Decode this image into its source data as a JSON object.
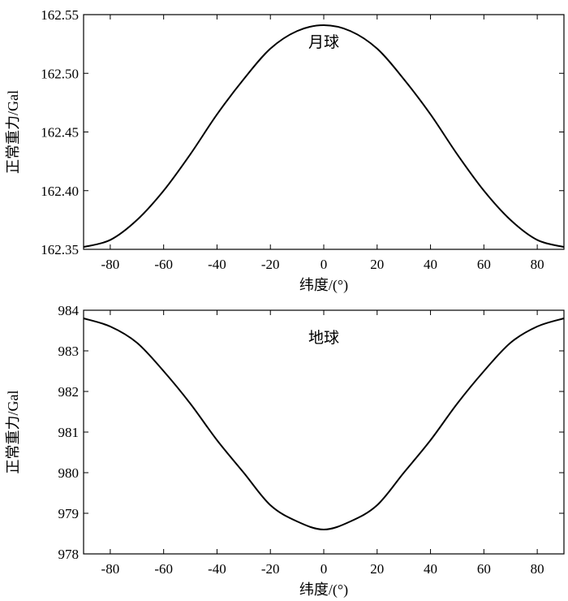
{
  "chart_data": [
    {
      "type": "line",
      "annotation": "月球",
      "xlabel": "纬度/(°)",
      "ylabel": "正常重力/Gal",
      "xlim": [
        -90,
        90
      ],
      "ylim": [
        162.35,
        162.55
      ],
      "xticks": [
        -80,
        -60,
        -40,
        -20,
        0,
        20,
        40,
        60,
        80
      ],
      "xtick_labels": [
        "-80",
        "-60",
        "-40",
        "-20",
        "0",
        "20",
        "40",
        "60",
        "80"
      ],
      "yticks": [
        162.35,
        162.4,
        162.45,
        162.5,
        162.55
      ],
      "ytick_labels": [
        "162.35",
        "162.40",
        "162.45",
        "162.50",
        "162.55"
      ],
      "grid": false,
      "series": [
        {
          "x": [
            -90,
            -80,
            -70,
            -60,
            -50,
            -40,
            -30,
            -20,
            -10,
            0,
            10,
            20,
            30,
            40,
            50,
            60,
            70,
            80,
            90
          ],
          "y": [
            162.352,
            162.358,
            162.375,
            162.4,
            162.431,
            162.465,
            162.495,
            162.521,
            162.536,
            162.541,
            162.536,
            162.521,
            162.495,
            162.465,
            162.431,
            162.4,
            162.375,
            162.358,
            162.352
          ]
        }
      ]
    },
    {
      "type": "line",
      "annotation": "地球",
      "xlabel": "纬度/(°)",
      "ylabel": "正常重力/Gal",
      "xlim": [
        -90,
        90
      ],
      "ylim": [
        978,
        984
      ],
      "xticks": [
        -80,
        -60,
        -40,
        -20,
        0,
        20,
        40,
        60,
        80
      ],
      "xtick_labels": [
        "-80",
        "-60",
        "-40",
        "-20",
        "0",
        "20",
        "40",
        "60",
        "80"
      ],
      "yticks": [
        978,
        979,
        980,
        981,
        982,
        983,
        984
      ],
      "ytick_labels": [
        "978",
        "979",
        "980",
        "981",
        "982",
        "983",
        "984"
      ],
      "grid": false,
      "series": [
        {
          "x": [
            -90,
            -80,
            -70,
            -60,
            -50,
            -40,
            -30,
            -20,
            -10,
            0,
            10,
            20,
            30,
            40,
            50,
            60,
            70,
            80,
            90
          ],
          "y": [
            983.8,
            983.6,
            983.2,
            982.5,
            981.7,
            980.8,
            980.0,
            979.2,
            978.8,
            978.6,
            978.8,
            979.2,
            980.0,
            980.8,
            981.7,
            982.5,
            983.2,
            983.6,
            983.8
          ]
        }
      ]
    }
  ]
}
